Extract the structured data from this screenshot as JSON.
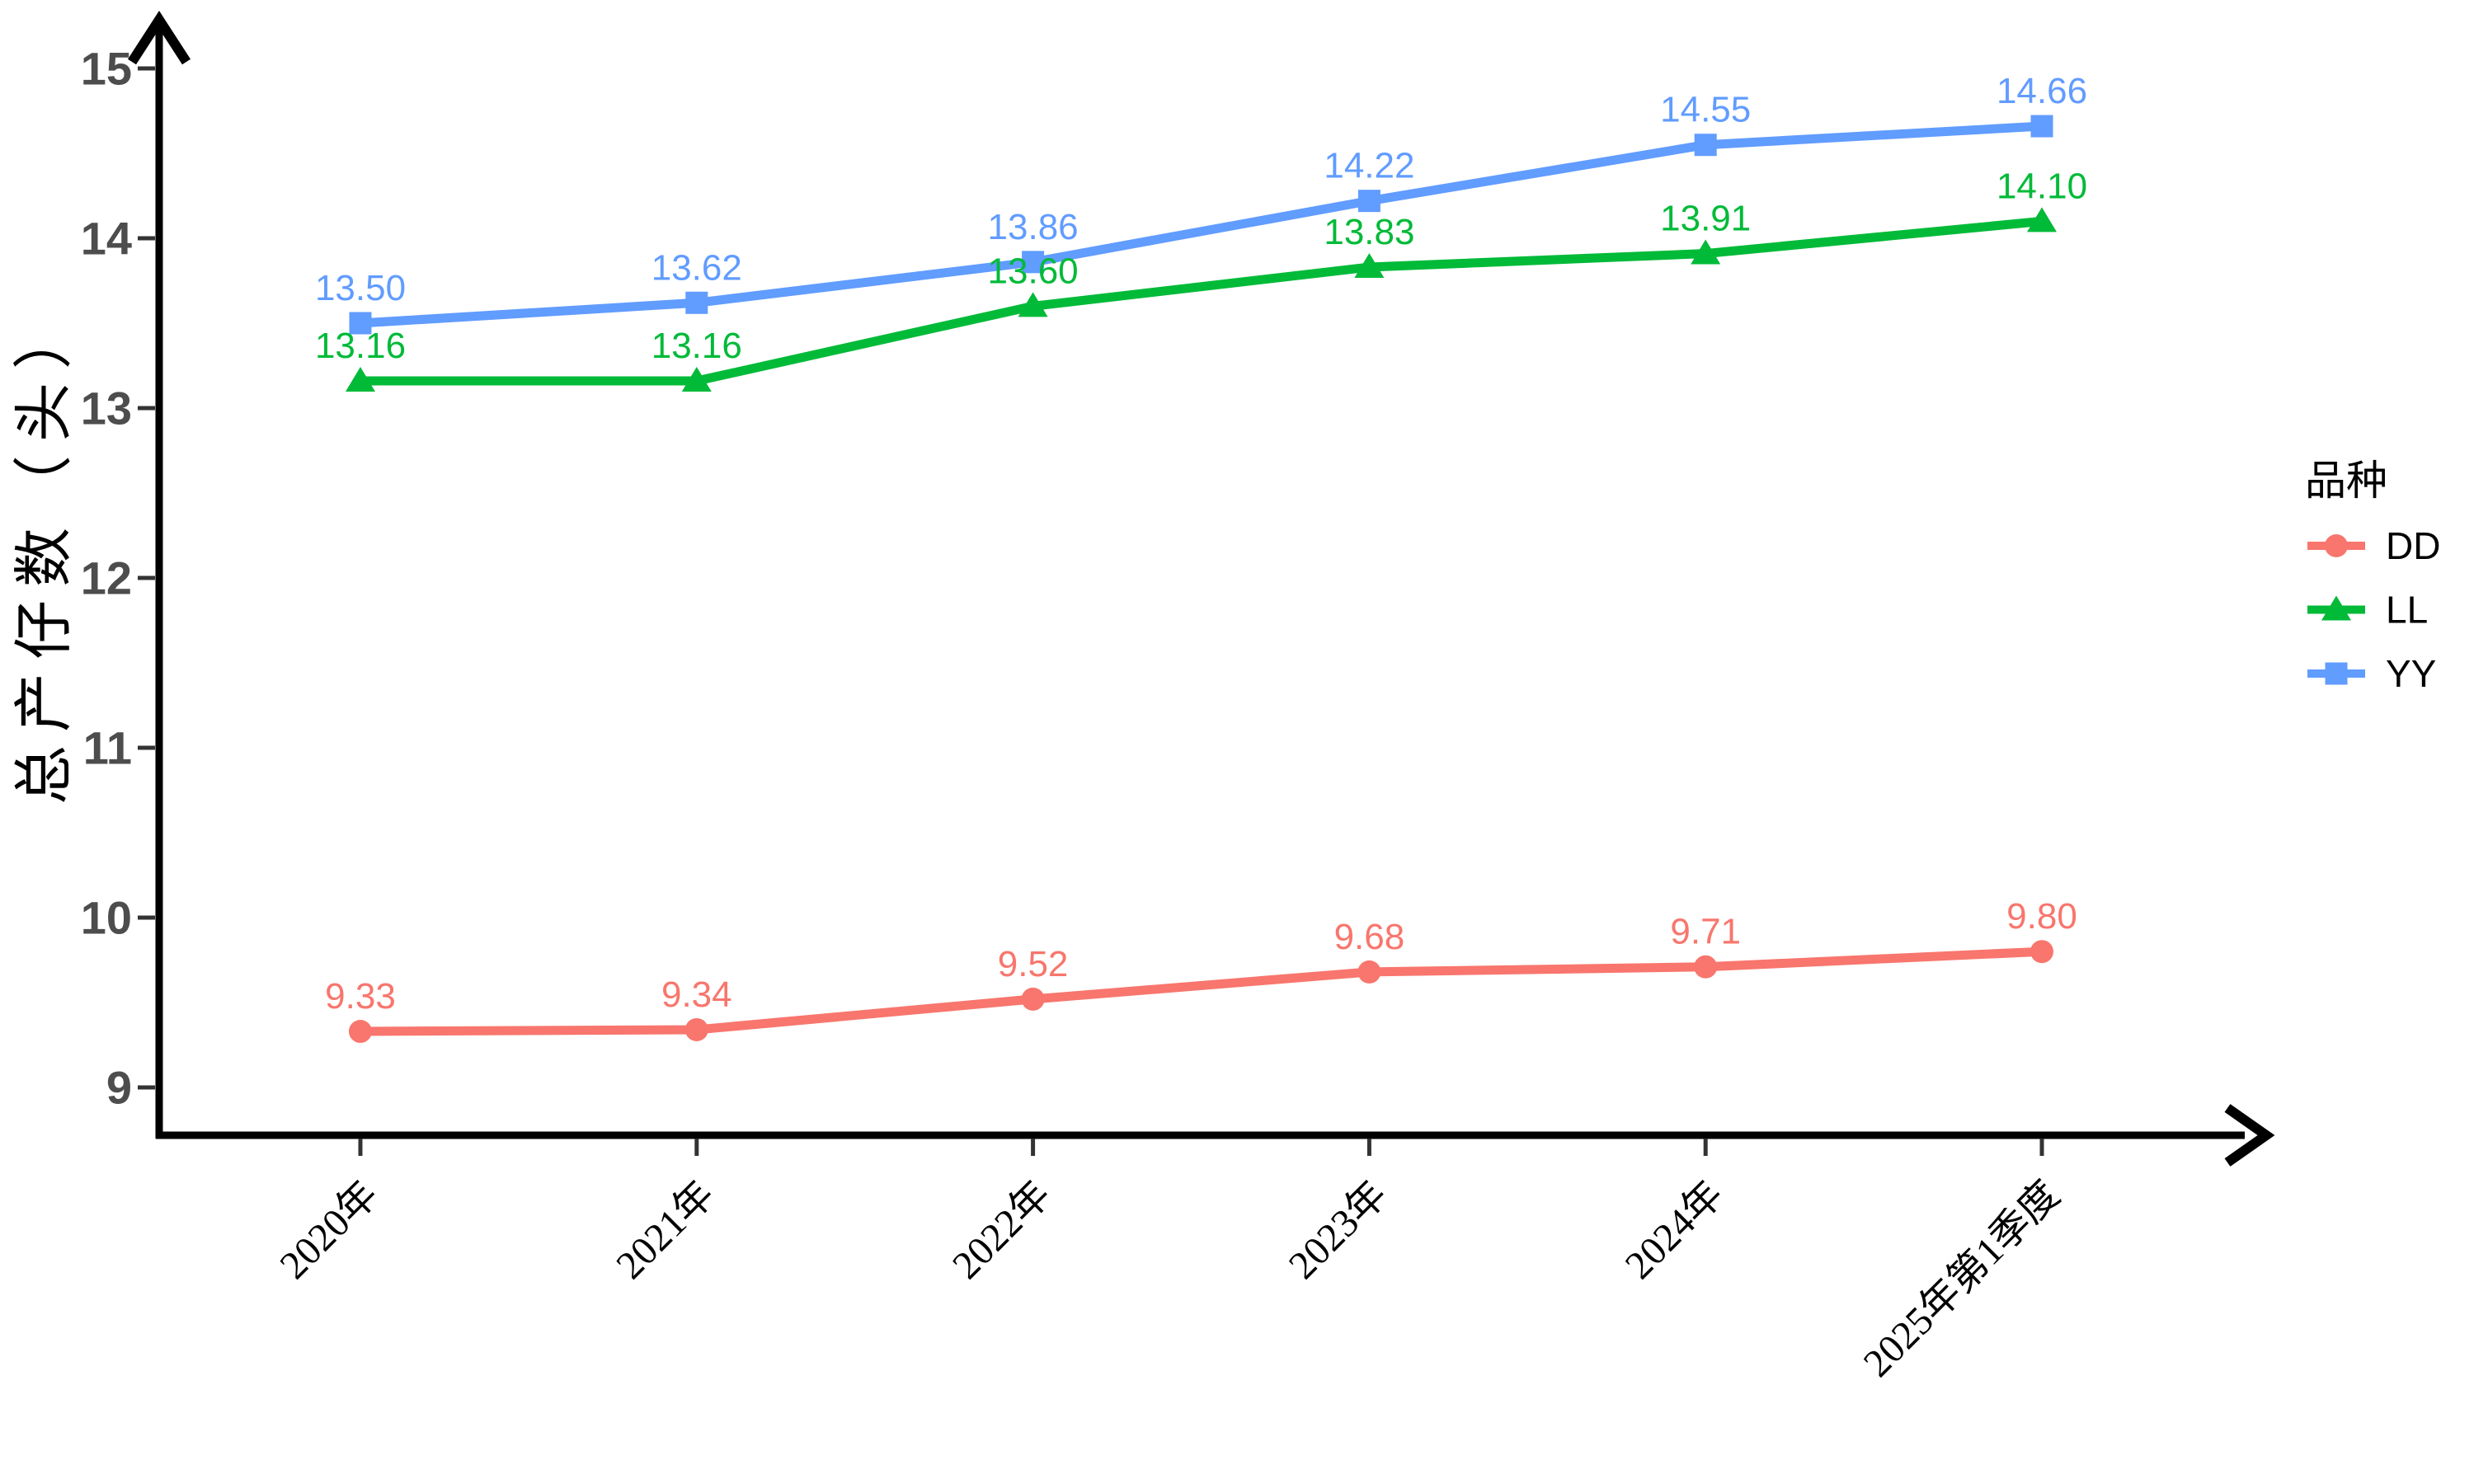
{
  "chart_data": {
    "type": "line",
    "ylabel": "总产仔数（头）",
    "legend_title": "品种",
    "legend_position": "right",
    "grid": false,
    "categories": [
      "2020年",
      "2021年",
      "2022年",
      "2023年",
      "2024年",
      "2025年第1季度"
    ],
    "series": [
      {
        "name": "DD",
        "color": "#F8766D",
        "marker": "circle",
        "values": [
          9.33,
          9.34,
          9.52,
          9.68,
          9.71,
          9.8
        ]
      },
      {
        "name": "LL",
        "color": "#00BA38",
        "marker": "triangle",
        "values": [
          13.16,
          13.16,
          13.6,
          13.83,
          13.91,
          14.1
        ]
      },
      {
        "name": "YY",
        "color": "#619CFF",
        "marker": "square",
        "values": [
          13.5,
          13.62,
          13.86,
          14.22,
          14.55,
          14.66
        ]
      }
    ],
    "value_label_decimals": 2,
    "y_ticks": [
      9,
      10,
      11,
      12,
      13,
      14,
      15
    ],
    "ylim": [
      8.7,
      15.3
    ],
    "axis_color": "#000000",
    "tick_color": "#333333",
    "y_tick_label_color": "#4d4d4d"
  }
}
